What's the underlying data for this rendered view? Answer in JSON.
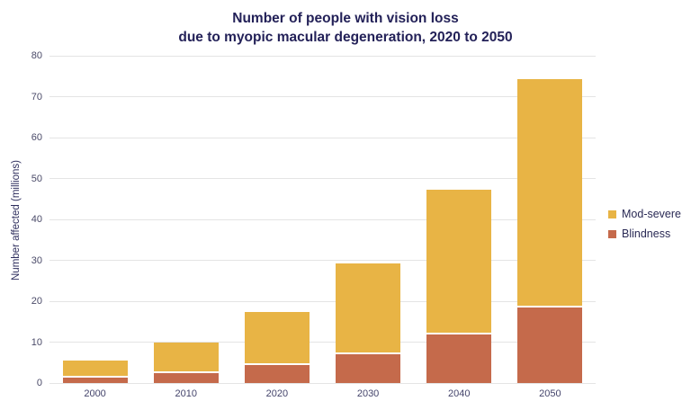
{
  "title": {
    "line1": "Number of people with vision loss",
    "line2": "due to myopic macular degeneration, 2020 to 2050"
  },
  "chart_data": {
    "type": "bar",
    "stacked": true,
    "title": "Number of people with vision loss due to myopic macular degeneration, 2020 to 2050",
    "xlabel": "",
    "ylabel": "Number affected (millions)",
    "categories": [
      "2000",
      "2010",
      "2020",
      "2030",
      "2040",
      "2050"
    ],
    "series": [
      {
        "name": "Mod-severe",
        "color": "#e8b445",
        "values": [
          4.1,
          7.4,
          13.0,
          22.1,
          35.4,
          55.7
        ]
      },
      {
        "name": "Blindness",
        "color": "#c56a4b",
        "values": [
          1.3,
          2.5,
          4.3,
          7.1,
          11.9,
          18.5
        ]
      }
    ],
    "stack_totals": [
      5.4,
      9.9,
      17.3,
      29.2,
      47.3,
      74.2
    ],
    "ylim": [
      0,
      80
    ],
    "yticks": [
      0,
      10,
      20,
      30,
      40,
      50,
      60,
      70,
      80
    ],
    "grid": true,
    "legend_position": "right"
  },
  "colors": {
    "title_text": "#232158",
    "axis_text": "#4a4a68",
    "gridline": "#e4e4e4",
    "background": "#ffffff",
    "mod_severe": "#e8b445",
    "blindness": "#c56a4b"
  }
}
